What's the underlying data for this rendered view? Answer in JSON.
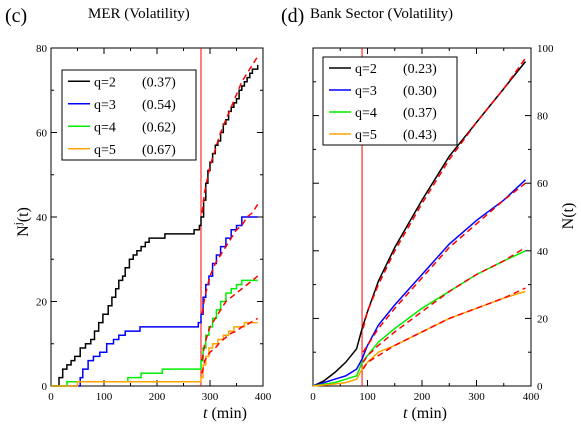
{
  "chart_data": [
    {
      "type": "line",
      "panel_label": "(c)",
      "title": "MER (Volatility)",
      "xlabel": "t (min)",
      "ylabel": "N^j(t)",
      "xlim": [
        0,
        400
      ],
      "ylim": [
        0,
        80
      ],
      "xticks": [
        0,
        100,
        200,
        300,
        400
      ],
      "yticks": [
        0,
        20,
        40,
        60,
        80
      ],
      "yaxis_side": "left",
      "event_line": {
        "x": 283,
        "color": "#ff0000"
      },
      "legend_position": "upper-left",
      "series": [
        {
          "name": "q=2",
          "exponent": "(0.37)",
          "color": "#000000",
          "step": true,
          "x": [
            0,
            15,
            22,
            30,
            38,
            45,
            55,
            65,
            75,
            82,
            90,
            98,
            108,
            115,
            122,
            128,
            135,
            140,
            148,
            155,
            162,
            170,
            178,
            185,
            195,
            205,
            215,
            228,
            240,
            270,
            280,
            283,
            288,
            292,
            296,
            300,
            305,
            310,
            315,
            320,
            325,
            330,
            335,
            340,
            345,
            350,
            355,
            360,
            365,
            370,
            375,
            380,
            385,
            390
          ],
          "y": [
            0,
            2,
            4,
            5,
            6,
            7,
            9,
            10,
            11,
            13,
            15,
            17,
            19,
            21,
            23,
            25,
            26,
            28,
            30,
            31,
            32,
            33,
            34,
            35,
            35,
            35,
            36,
            36,
            36,
            37,
            38,
            40,
            44,
            48,
            51,
            53,
            55,
            57,
            58,
            60,
            62,
            63,
            65,
            66,
            67,
            68,
            70,
            71,
            72,
            73,
            74,
            75,
            75,
            76
          ]
        },
        {
          "name": "q=3",
          "exponent": "(0.54)",
          "color": "#0000ff",
          "step": true,
          "x": [
            0,
            50,
            55,
            60,
            70,
            80,
            92,
            105,
            118,
            128,
            140,
            155,
            168,
            180,
            200,
            225,
            255,
            278,
            283,
            287,
            292,
            298,
            305,
            312,
            320,
            330,
            340,
            350,
            360,
            370,
            380,
            390
          ],
          "y": [
            0,
            0,
            2,
            4,
            6,
            7,
            8,
            10,
            11,
            12,
            13,
            13,
            14,
            14,
            14,
            14,
            14,
            15,
            17,
            21,
            24,
            26,
            29,
            31,
            33,
            35,
            37,
            38,
            40,
            40,
            40,
            40
          ]
        },
        {
          "name": "q=4",
          "exponent": "(0.62)",
          "color": "#00ee00",
          "step": true,
          "x": [
            0,
            30,
            60,
            120,
            145,
            170,
            195,
            210,
            250,
            280,
            283,
            287,
            292,
            298,
            305,
            312,
            320,
            330,
            340,
            350,
            360,
            370,
            380,
            390
          ],
          "y": [
            0,
            1,
            1,
            1,
            2,
            3,
            3,
            4,
            4,
            4,
            6,
            9,
            12,
            14,
            16,
            18,
            20,
            22,
            23,
            24,
            25,
            25,
            25,
            25
          ]
        },
        {
          "name": "q=5",
          "exponent": "(0.67)",
          "color": "#ffa500",
          "step": true,
          "x": [
            0,
            50,
            100,
            150,
            200,
            250,
            280,
            283,
            287,
            292,
            298,
            305,
            315,
            325,
            335,
            345,
            355,
            365,
            375,
            385,
            390
          ],
          "y": [
            0,
            1,
            1,
            1,
            1,
            1,
            1,
            2,
            5,
            7,
            9,
            10,
            11,
            12,
            13,
            14,
            14,
            15,
            15,
            15,
            15
          ]
        }
      ],
      "fits": [
        {
          "series": "q=2",
          "color": "#ff0000",
          "x": [
            285,
            290,
            300,
            310,
            320,
            330,
            340,
            350,
            360,
            370,
            380,
            390
          ],
          "y": [
            41,
            46,
            52,
            56,
            60,
            63,
            66,
            69,
            72,
            74,
            76,
            78
          ]
        },
        {
          "series": "q=3",
          "color": "#ff0000",
          "x": [
            285,
            290,
            300,
            310,
            320,
            330,
            340,
            350,
            360,
            370,
            380,
            390
          ],
          "y": [
            17,
            21,
            26,
            29,
            31,
            33,
            35,
            37,
            38,
            40,
            41,
            43
          ]
        },
        {
          "series": "q=4",
          "color": "#ff0000",
          "x": [
            285,
            290,
            300,
            310,
            320,
            330,
            340,
            350,
            360,
            370,
            380,
            390
          ],
          "y": [
            6,
            10,
            14,
            16,
            18,
            20,
            21,
            22,
            23,
            24,
            25,
            26
          ]
        },
        {
          "series": "q=5",
          "color": "#ff0000",
          "x": [
            285,
            290,
            300,
            310,
            320,
            330,
            340,
            350,
            360,
            370,
            380,
            390
          ],
          "y": [
            3,
            6,
            8,
            9,
            10.5,
            11.5,
            12.5,
            13,
            14,
            14.5,
            15.3,
            16
          ]
        }
      ]
    },
    {
      "type": "line",
      "panel_label": "(d)",
      "title": "Bank Sector (Volatility)",
      "xlabel": "t (min)",
      "ylabel": "N(t)",
      "xlim": [
        0,
        400
      ],
      "ylim": [
        0,
        100
      ],
      "xticks": [
        0,
        100,
        200,
        300,
        400
      ],
      "yticks": [
        0,
        20,
        40,
        60,
        80,
        100
      ],
      "yaxis_side": "right",
      "event_line": {
        "x": 90,
        "color": "#ff0000"
      },
      "legend_position": "upper-left",
      "series": [
        {
          "name": "q=2",
          "exponent": "(0.23)",
          "color": "#000000",
          "step": false,
          "x": [
            0,
            20,
            40,
            60,
            80,
            90,
            100,
            120,
            150,
            200,
            250,
            300,
            350,
            390
          ],
          "y": [
            0,
            1.5,
            4,
            7,
            11,
            17,
            22,
            31,
            41,
            55,
            68,
            78,
            88,
            96
          ]
        },
        {
          "name": "q=3",
          "exponent": "(0.30)",
          "color": "#0000ff",
          "step": false,
          "x": [
            0,
            20,
            40,
            60,
            80,
            90,
            100,
            120,
            150,
            200,
            250,
            300,
            350,
            390
          ],
          "y": [
            0,
            1,
            2,
            3,
            5,
            8,
            12,
            18,
            24,
            33,
            42,
            49,
            55,
            61
          ]
        },
        {
          "name": "q=4",
          "exponent": "(0.37)",
          "color": "#00ee00",
          "step": false,
          "x": [
            0,
            20,
            40,
            60,
            80,
            90,
            100,
            120,
            150,
            200,
            250,
            300,
            350,
            390
          ],
          "y": [
            0,
            0.5,
            1,
            2,
            3,
            7,
            9,
            13,
            17,
            23,
            28,
            33,
            37,
            40
          ]
        },
        {
          "name": "q=5",
          "exponent": "(0.43)",
          "color": "#ffa500",
          "step": false,
          "x": [
            0,
            20,
            40,
            60,
            80,
            90,
            100,
            120,
            150,
            200,
            250,
            300,
            350,
            390
          ],
          "y": [
            0,
            0.3,
            0.6,
            1,
            2,
            5,
            7,
            10,
            12,
            16,
            20,
            23,
            26,
            28
          ]
        }
      ],
      "fits": [
        {
          "series": "q=2",
          "color": "#ff0000",
          "x": [
            92,
            100,
            120,
            150,
            200,
            250,
            300,
            350,
            390
          ],
          "y": [
            17,
            22,
            30,
            40,
            54,
            67,
            78,
            88,
            97
          ]
        },
        {
          "series": "q=3",
          "color": "#ff0000",
          "x": [
            92,
            100,
            120,
            150,
            200,
            250,
            300,
            350,
            390
          ],
          "y": [
            10,
            12,
            17,
            23,
            32,
            41,
            48,
            55,
            60
          ]
        },
        {
          "series": "q=4",
          "color": "#ff0000",
          "x": [
            92,
            100,
            120,
            150,
            200,
            250,
            300,
            350,
            390
          ],
          "y": [
            7,
            9,
            12,
            16,
            22,
            28,
            33,
            37,
            41
          ]
        },
        {
          "series": "q=5",
          "color": "#ff0000",
          "x": [
            92,
            100,
            120,
            150,
            200,
            250,
            300,
            350,
            390
          ],
          "y": [
            5,
            7,
            9,
            12,
            16,
            20,
            23,
            26,
            29
          ]
        }
      ]
    }
  ]
}
